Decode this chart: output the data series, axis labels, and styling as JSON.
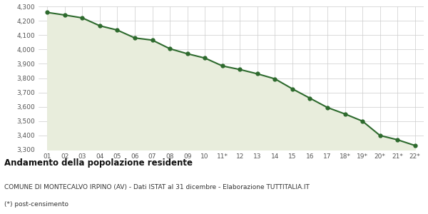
{
  "x_labels": [
    "01",
    "02",
    "03",
    "04",
    "05",
    "06",
    "07",
    "08",
    "09",
    "10",
    "11*",
    "12",
    "13",
    "14",
    "15",
    "16",
    "17",
    "18*",
    "19*",
    "20*",
    "21*",
    "22*"
  ],
  "y_values": [
    4258,
    4240,
    4220,
    4165,
    4135,
    4080,
    4065,
    4005,
    3970,
    3940,
    3885,
    3860,
    3830,
    3795,
    3725,
    3660,
    3595,
    3550,
    3500,
    3400,
    3370,
    3330
  ],
  "line_color": "#2d6a2d",
  "fill_color": "#e8eddc",
  "marker_color": "#2d6a2d",
  "bg_color": "#ffffff",
  "grid_color": "#cccccc",
  "ylim": [
    3300,
    4300
  ],
  "ytick_step": 100,
  "title": "Andamento della popolazione residente",
  "subtitle": "COMUNE DI MONTECALVO IRPINO (AV) - Dati ISTAT al 31 dicembre - Elaborazione TUTTITALIA.IT",
  "footnote": "(*) post-censimento",
  "title_fontsize": 8.5,
  "subtitle_fontsize": 6.5,
  "footnote_fontsize": 6.5,
  "tick_fontsize": 6.5,
  "line_width": 1.5,
  "marker_size": 3.5
}
